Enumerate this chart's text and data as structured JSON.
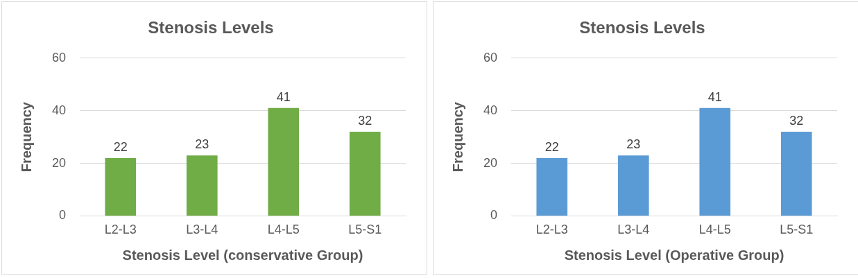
{
  "chart_data": [
    {
      "type": "bar",
      "title": "Stenosis Levels",
      "xlabel": "Stenosis Level (conservative Group)",
      "ylabel": "Frequency",
      "categories": [
        "L2-L3",
        "L3-L4",
        "L4-L5",
        "L5-S1"
      ],
      "values": [
        22,
        23,
        41,
        32
      ],
      "color": "#70ad47",
      "ylim": [
        0,
        60
      ],
      "yticks": [
        0,
        20,
        40,
        60
      ],
      "grid": "y",
      "legend": false,
      "data_labels": true
    },
    {
      "type": "bar",
      "title": "Stenosis Levels",
      "xlabel": "Stenosis Level (Operative Group)",
      "ylabel": "Frequency",
      "categories": [
        "L2-L3",
        "L3-L4",
        "L4-L5",
        "L5-S1"
      ],
      "values": [
        22,
        23,
        41,
        32
      ],
      "color": "#5b9bd5",
      "ylim": [
        0,
        60
      ],
      "yticks": [
        0,
        20,
        40,
        60
      ],
      "grid": "y",
      "legend": false,
      "data_labels": true
    }
  ]
}
